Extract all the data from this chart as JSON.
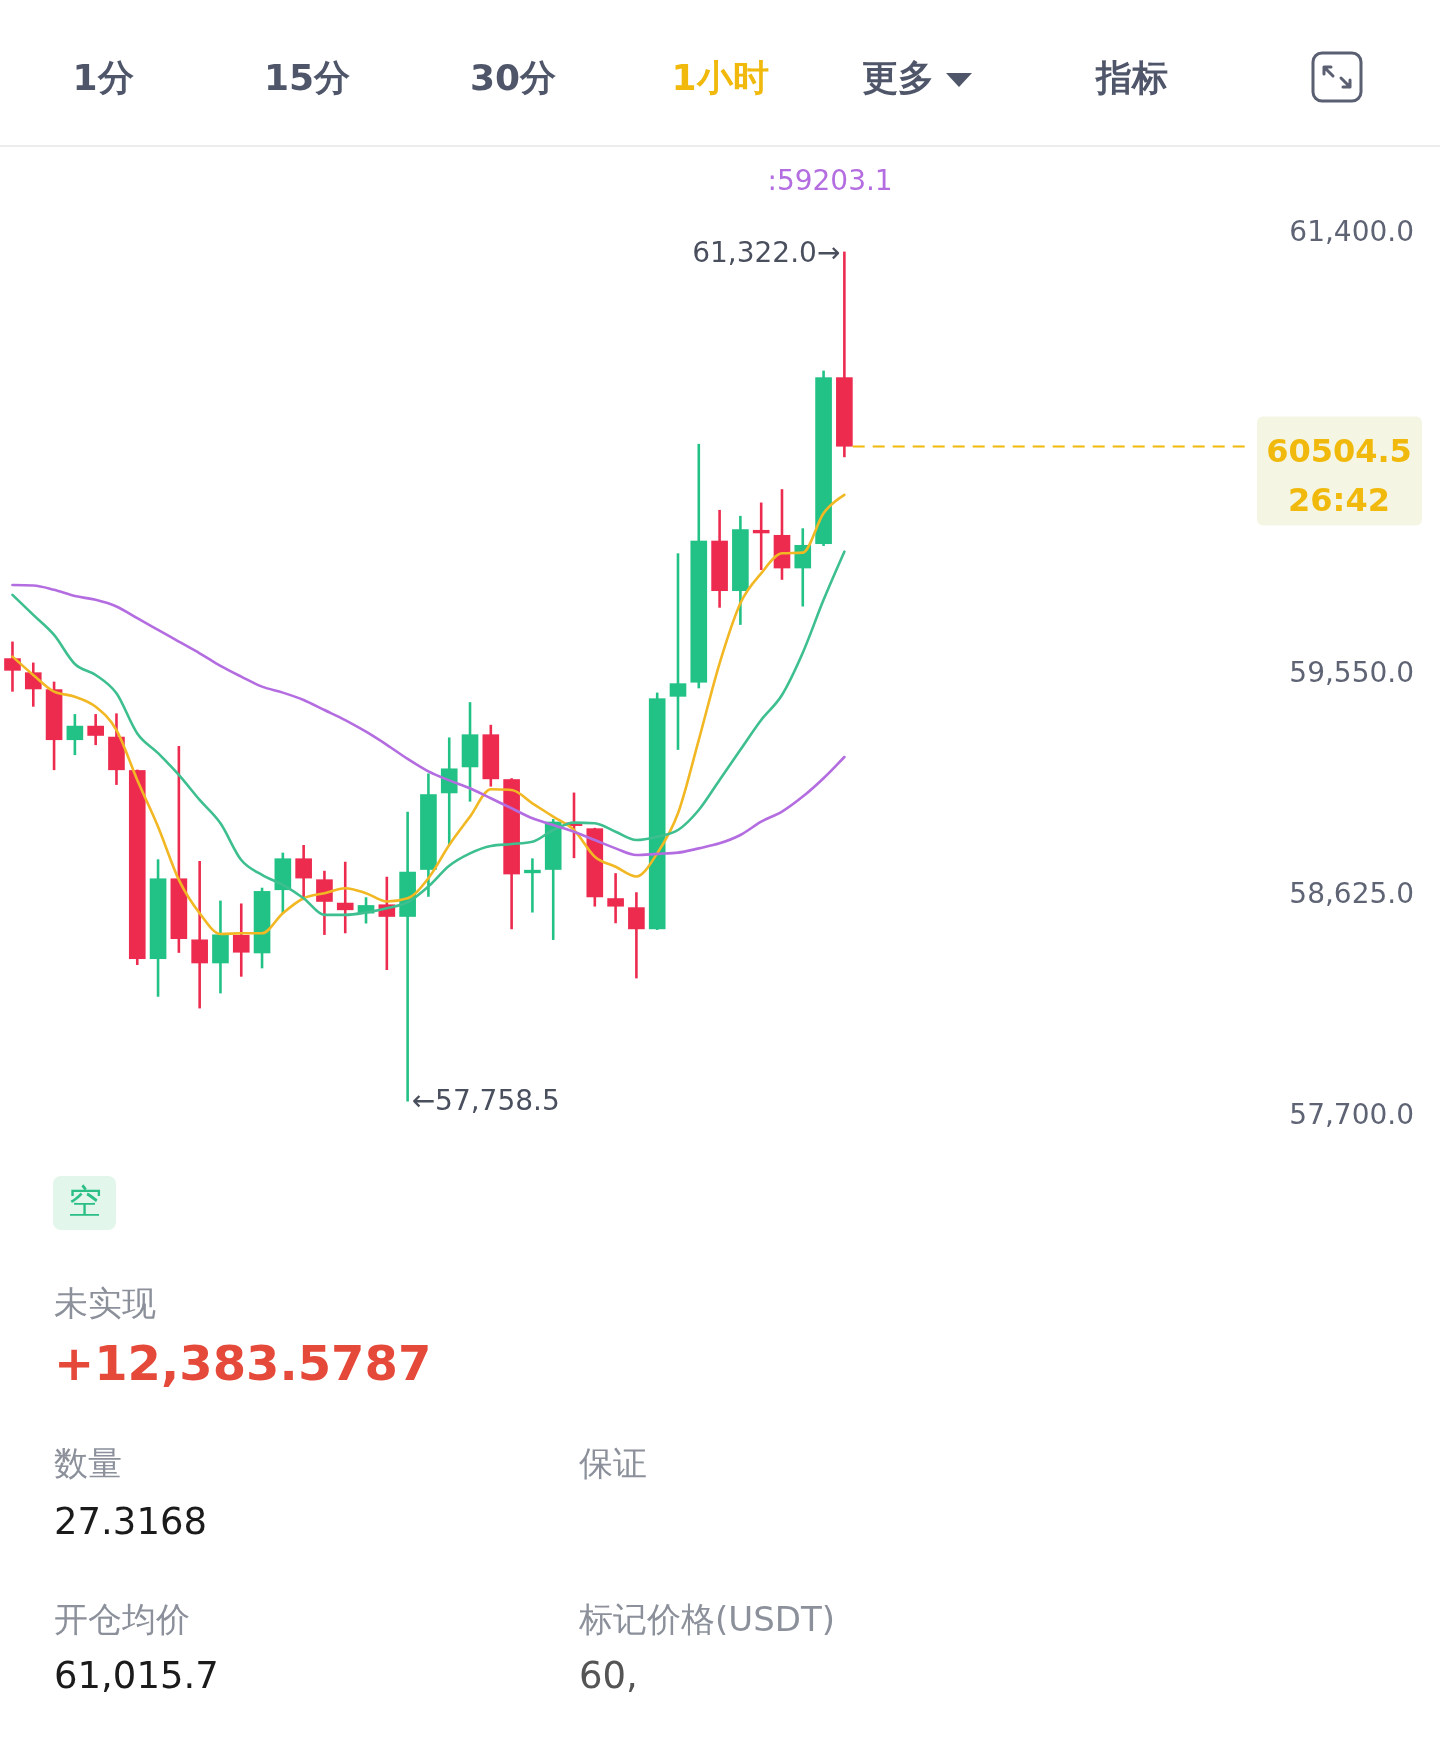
{
  "chart_data": {
    "type": "candlestick",
    "categories": [
      null,
      null,
      null,
      null,
      null,
      null,
      null,
      null,
      null,
      null,
      null,
      null,
      null,
      null,
      null,
      null,
      null,
      null,
      null,
      null,
      null,
      null,
      null,
      null,
      null,
      null,
      null,
      null,
      null,
      null,
      null,
      null,
      null,
      null,
      null,
      null,
      null,
      null,
      null,
      null,
      null,
      null,
      null,
      null,
      null,
      null,
      null,
      null,
      null,
      null,
      null,
      null,
      null,
      null,
      null,
      null,
      null,
      null,
      null,
      null
    ],
    "ohlc": [
      [
        59617,
        59687,
        59477,
        59565
      ],
      [
        59558,
        59599,
        59414,
        59487
      ],
      [
        59487,
        59519,
        59148,
        59274
      ],
      [
        59274,
        59383,
        59211,
        59334
      ],
      [
        59334,
        59383,
        59253,
        59292
      ],
      [
        59288,
        59386,
        59086,
        59148
      ],
      [
        59148,
        59150,
        58331,
        58356
      ],
      [
        58356,
        58774,
        58198,
        58694
      ],
      [
        58694,
        59249,
        58382,
        58440
      ],
      [
        58438,
        58767,
        58149,
        58338
      ],
      [
        58338,
        58601,
        58212,
        58459
      ],
      [
        58457,
        58589,
        58282,
        58383
      ],
      [
        58380,
        58655,
        58317,
        58641
      ],
      [
        58645,
        58802,
        58547,
        58778
      ],
      [
        58778,
        58834,
        58603,
        58694
      ],
      [
        58690,
        58726,
        58457,
        58596
      ],
      [
        58592,
        58764,
        58464,
        58561
      ],
      [
        58547,
        58615,
        58505,
        58582
      ],
      [
        58585,
        58701,
        58310,
        58533
      ],
      [
        58533,
        58974,
        57758.5,
        58722
      ],
      [
        58730,
        59134,
        58617,
        59047
      ],
      [
        59051,
        59285,
        58834,
        59155
      ],
      [
        59160,
        59433,
        59016,
        59298
      ],
      [
        59298,
        59338,
        59079,
        59110
      ],
      [
        59110,
        59114,
        58481,
        58711
      ],
      [
        58716,
        58778,
        58551,
        58730
      ],
      [
        58730,
        58943,
        58436,
        58932
      ],
      [
        58928,
        59054,
        58779,
        58914
      ],
      [
        58904,
        58906,
        58576,
        58615
      ],
      [
        58611,
        58716,
        58506,
        58576
      ],
      [
        58573,
        58636,
        58275,
        58481
      ],
      [
        58481,
        59473,
        58478,
        59449
      ],
      [
        59456,
        60057,
        59233,
        59512
      ],
      [
        59515,
        60516,
        59491,
        60110
      ],
      [
        60110,
        60239,
        59829,
        59899
      ],
      [
        59899,
        60214,
        59757,
        60158
      ],
      [
        60155,
        60270,
        59987,
        60141
      ],
      [
        60134,
        60326,
        59946,
        59994
      ],
      [
        59994,
        60162,
        59834,
        60092
      ],
      [
        60096,
        60823,
        60088,
        60795
      ],
      [
        60795,
        61322,
        60460,
        60504.5
      ],
      null,
      null,
      null,
      null,
      null,
      null,
      null,
      null,
      null,
      null,
      null,
      null,
      null,
      null,
      null,
      null,
      null,
      null,
      null
    ],
    "colors": [
      "#ec2b4f",
      "#ec2b4f",
      "#ec2b4f",
      "#22c185",
      "#ec2b4f",
      "#ec2b4f",
      "#ec2b4f",
      "#22c185",
      "#ec2b4f",
      "#ec2b4f",
      "#22c185",
      "#ec2b4f",
      "#22c185",
      "#22c185",
      "#ec2b4f",
      "#ec2b4f",
      "#ec2b4f",
      "#22c185",
      "#ec2b4f",
      "#22c185",
      "#22c185",
      "#22c185",
      "#22c185",
      "#ec2b4f",
      "#ec2b4f",
      "#22c185",
      "#22c185",
      "#ec2b4f",
      "#ec2b4f",
      "#ec2b4f",
      "#ec2b4f",
      "#22c185",
      "#22c185",
      "#22c185",
      "#ec2b4f",
      "#22c185",
      "#ec2b4f",
      "#ec2b4f",
      "#22c185",
      "#22c185",
      "#ec2b4f",
      null,
      null,
      null,
      null,
      null,
      null,
      null,
      null,
      null,
      null,
      null,
      null,
      null,
      null,
      null,
      null,
      null,
      null,
      null
    ],
    "series": [
      {
        "type": "line",
        "color": "#f2b824",
        "values": [
          59624,
          59547,
          59477,
          59456,
          59414,
          59316,
          59107,
          58911,
          58688,
          58548,
          58461,
          58464,
          58464,
          58548,
          58611,
          58632,
          58653,
          58632,
          58597,
          58611,
          58695,
          58834,
          58953,
          59068,
          59065,
          59009,
          58953,
          58897,
          58785,
          58743,
          58702,
          58799,
          58967,
          59275,
          59596,
          59848,
          59973,
          60057,
          60060,
          60225,
          60302,
          null,
          null,
          null,
          null,
          null,
          null,
          null,
          null,
          null,
          null,
          null,
          null,
          null,
          null,
          null,
          null,
          null,
          null,
          null
        ]
      },
      {
        "type": "line",
        "color": "#3dbf8f",
        "values": [
          59883,
          59799,
          59715,
          59593,
          59547,
          59470,
          59302,
          59219,
          59128,
          59023,
          58925,
          58771,
          58709,
          58667,
          58611,
          58541,
          58541,
          58551,
          58569,
          58594,
          58660,
          58747,
          58799,
          58830,
          58838,
          58848,
          58897,
          58928,
          58925,
          58890,
          58855,
          58869,
          58897,
          58981,
          59107,
          59233,
          59358,
          59463,
          59640,
          59862,
          60064,
          null,
          null,
          null,
          null,
          null,
          null,
          null,
          null,
          null,
          null,
          null,
          null,
          null,
          null,
          null,
          null,
          null,
          null,
          null
        ]
      },
      {
        "type": "line",
        "name": ":59203.1",
        "color": "#b46de0",
        "values": [
          59924,
          59922,
          59904,
          59878,
          59862,
          59834,
          59785,
          59736,
          59687,
          59638,
          59585,
          59540,
          59498,
          59473,
          59442,
          59400,
          59358,
          59309,
          59254,
          59195,
          59143,
          59105,
          59072,
          59030,
          58988,
          58946,
          58918,
          58890,
          58855,
          58820,
          58792,
          58797,
          58802,
          58820,
          58841,
          58876,
          58932,
          58974,
          59037,
          59114,
          59203,
          null,
          null,
          null,
          null,
          null,
          null,
          null,
          null,
          null,
          null,
          null,
          null,
          null,
          null,
          null,
          null,
          null,
          null,
          null
        ]
      }
    ],
    "ylim": [
      57700,
      61400
    ],
    "yticks": [
      {
        "value": 61400,
        "label": "61,400.0"
      },
      {
        "value": 59550,
        "label": "59,550.0"
      },
      {
        "value": 58625,
        "label": "58,625.0"
      },
      {
        "value": 57700,
        "label": "57,700.0"
      }
    ],
    "tick_labels": "y",
    "legend": "top right",
    "ref_lines": [
      {
        "axis": "y",
        "value": 60504.5,
        "label": "60504.5",
        "color": "#f0b90b",
        "line_style": "dashed"
      }
    ],
    "annotations": [
      "1分",
      "15分",
      "30分",
      "1小时",
      "更多",
      "指标",
      "61,322.0→",
      "←57,758.5",
      "26:42",
      "空",
      "未实现",
      "+12,383.5787",
      "数量",
      "27.3168",
      "保证",
      "开仓均价",
      "61,015.7",
      "标记价格(USDT)",
      "60,"
    ]
  }
}
